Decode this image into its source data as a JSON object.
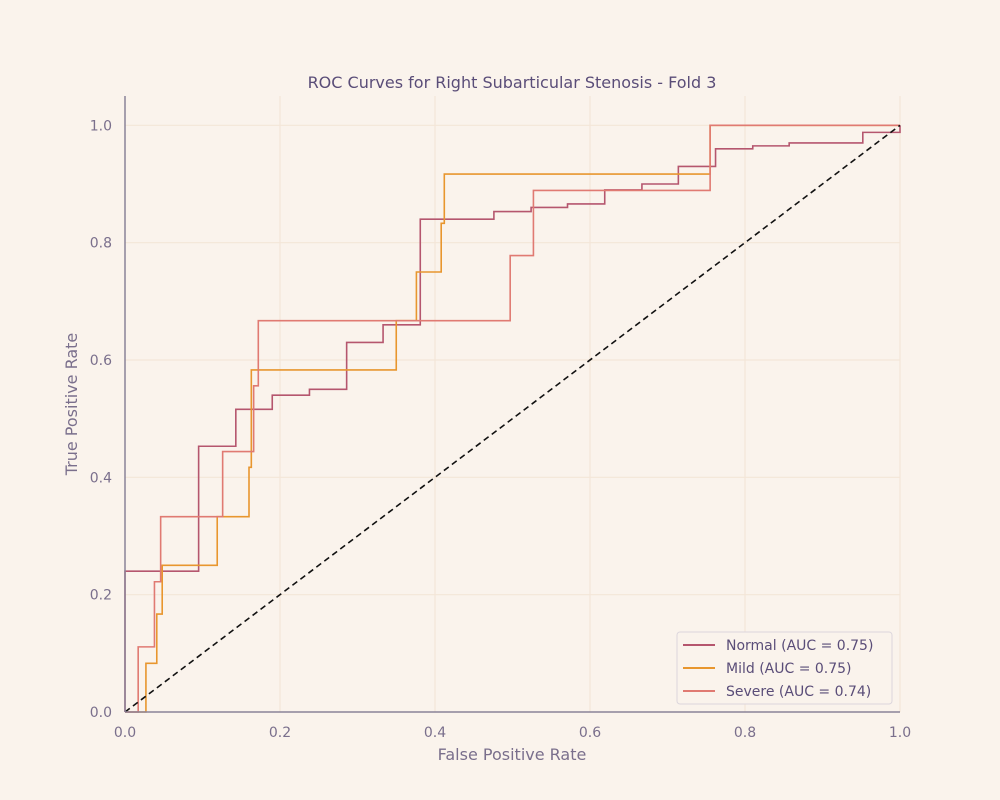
{
  "chart_data": {
    "type": "line",
    "title": "ROC Curves for Right Subarticular Stenosis - Fold 3",
    "xlabel": "False Positive Rate",
    "ylabel": "True Positive Rate",
    "xlim": [
      0,
      1
    ],
    "ylim": [
      0,
      1.05
    ],
    "xticks": [
      0,
      0.2,
      0.4,
      0.6,
      0.8,
      1.0
    ],
    "yticks": [
      0,
      0.2,
      0.4,
      0.6,
      0.8,
      1.0
    ],
    "xtick_labels": [
      "0.0",
      "0.2",
      "0.4",
      "0.6",
      "0.8",
      "1.0"
    ],
    "ytick_labels": [
      "0.0",
      "0.2",
      "0.4",
      "0.6",
      "0.8",
      "1.0"
    ],
    "grid": true,
    "legend_position": "bottom-right",
    "background_color": "#faf3ec",
    "grid_color": "#f3e6d8",
    "axis_color": "#8a8398",
    "series": [
      {
        "name": "Normal (AUC = 0.75)",
        "color": "#b5566e",
        "step": true,
        "points": [
          [
            0,
            0
          ],
          [
            0,
            0.24
          ],
          [
            0.095,
            0.24
          ],
          [
            0.095,
            0.453
          ],
          [
            0.143,
            0.453
          ],
          [
            0.143,
            0.516
          ],
          [
            0.19,
            0.516
          ],
          [
            0.19,
            0.54
          ],
          [
            0.238,
            0.54
          ],
          [
            0.238,
            0.55
          ],
          [
            0.286,
            0.55
          ],
          [
            0.286,
            0.63
          ],
          [
            0.333,
            0.63
          ],
          [
            0.333,
            0.66
          ],
          [
            0.381,
            0.66
          ],
          [
            0.381,
            0.84
          ],
          [
            0.476,
            0.84
          ],
          [
            0.476,
            0.853
          ],
          [
            0.524,
            0.853
          ],
          [
            0.524,
            0.86
          ],
          [
            0.571,
            0.86
          ],
          [
            0.571,
            0.866
          ],
          [
            0.619,
            0.866
          ],
          [
            0.619,
            0.89
          ],
          [
            0.667,
            0.89
          ],
          [
            0.667,
            0.9
          ],
          [
            0.714,
            0.9
          ],
          [
            0.714,
            0.93
          ],
          [
            0.762,
            0.93
          ],
          [
            0.762,
            0.96
          ],
          [
            0.81,
            0.96
          ],
          [
            0.81,
            0.965
          ],
          [
            0.857,
            0.965
          ],
          [
            0.857,
            0.97
          ],
          [
            0.952,
            0.97
          ],
          [
            0.952,
            0.988
          ],
          [
            1.0,
            0.988
          ],
          [
            1.0,
            1.0
          ]
        ]
      },
      {
        "name": "Mild (AUC = 0.75)",
        "color": "#e8962e",
        "step": true,
        "points": [
          [
            0,
            0
          ],
          [
            0.027,
            0
          ],
          [
            0.027,
            0.083
          ],
          [
            0.041,
            0.083
          ],
          [
            0.041,
            0.167
          ],
          [
            0.048,
            0.167
          ],
          [
            0.048,
            0.25
          ],
          [
            0.119,
            0.25
          ],
          [
            0.119,
            0.333
          ],
          [
            0.16,
            0.333
          ],
          [
            0.16,
            0.417
          ],
          [
            0.163,
            0.417
          ],
          [
            0.163,
            0.583
          ],
          [
            0.35,
            0.583
          ],
          [
            0.35,
            0.667
          ],
          [
            0.376,
            0.667
          ],
          [
            0.376,
            0.75
          ],
          [
            0.408,
            0.75
          ],
          [
            0.408,
            0.833
          ],
          [
            0.412,
            0.833
          ],
          [
            0.412,
            0.917
          ],
          [
            0.755,
            0.917
          ],
          [
            0.755,
            1.0
          ],
          [
            1.0,
            1.0
          ]
        ]
      },
      {
        "name": "Severe (AUC = 0.74)",
        "color": "#e07a72",
        "step": true,
        "points": [
          [
            0,
            0
          ],
          [
            0.017,
            0
          ],
          [
            0.017,
            0.111
          ],
          [
            0.038,
            0.111
          ],
          [
            0.038,
            0.222
          ],
          [
            0.046,
            0.222
          ],
          [
            0.046,
            0.333
          ],
          [
            0.126,
            0.333
          ],
          [
            0.126,
            0.444
          ],
          [
            0.166,
            0.444
          ],
          [
            0.166,
            0.556
          ],
          [
            0.172,
            0.556
          ],
          [
            0.172,
            0.667
          ],
          [
            0.497,
            0.667
          ],
          [
            0.497,
            0.778
          ],
          [
            0.527,
            0.778
          ],
          [
            0.527,
            0.889
          ],
          [
            0.755,
            0.889
          ],
          [
            0.755,
            1.0
          ],
          [
            1.0,
            1.0
          ]
        ]
      },
      {
        "name": "",
        "color": "#111111",
        "dashed": true,
        "points": [
          [
            0,
            0
          ],
          [
            1,
            1
          ]
        ]
      }
    ]
  }
}
